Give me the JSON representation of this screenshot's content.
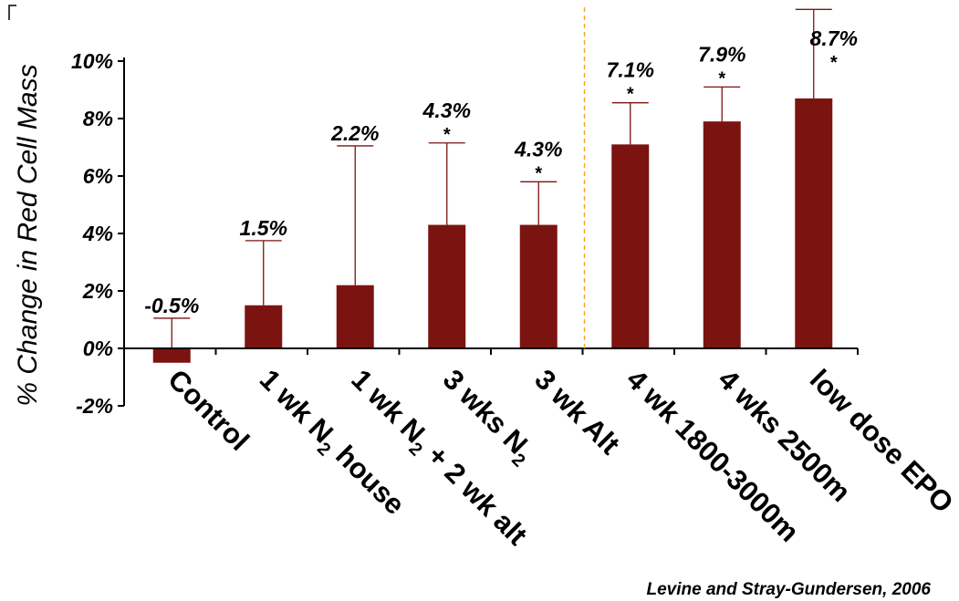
{
  "chart_data": {
    "type": "bar",
    "ylabel": "% Change in Red Cell Mass",
    "ylim": [
      -2,
      10
    ],
    "yticks": [
      "-2%",
      "0%",
      "2%",
      "4%",
      "6%",
      "8%",
      "10%"
    ],
    "ytick_values": [
      -2,
      0,
      2,
      4,
      6,
      8,
      10
    ],
    "bar_color": "#7b1411",
    "divider_color": "#f5a623",
    "categories": [
      {
        "parts": [
          {
            "t": "Control"
          }
        ]
      },
      {
        "parts": [
          {
            "t": "1 wk N"
          },
          {
            "t": "2",
            "sub": true
          },
          {
            "t": " house"
          }
        ]
      },
      {
        "parts": [
          {
            "t": "1 wk N"
          },
          {
            "t": "2",
            "sub": true
          },
          {
            "t": " + 2 wk alt"
          }
        ]
      },
      {
        "parts": [
          {
            "t": "3 wks N"
          },
          {
            "t": "2",
            "sub": true
          }
        ]
      },
      {
        "parts": [
          {
            "t": "3 wk Alt"
          }
        ]
      },
      {
        "parts": [
          {
            "t": "4 wk 1800-3000m"
          }
        ]
      },
      {
        "parts": [
          {
            "t": "4 wks 2500m"
          }
        ]
      },
      {
        "parts": [
          {
            "t": "low dose EPO"
          }
        ]
      }
    ],
    "values": [
      -0.5,
      1.5,
      2.2,
      4.3,
      4.3,
      7.1,
      7.9,
      8.7
    ],
    "error_upper": [
      1.05,
      3.75,
      7.05,
      7.15,
      5.8,
      8.55,
      9.1,
      11.8
    ],
    "value_labels": [
      "-0.5%",
      "1.5%",
      "2.2%",
      "4.3%",
      "4.3%",
      "7.1%",
      "7.9%",
      "8.7%"
    ],
    "significance": [
      "",
      "",
      "",
      "*",
      "*",
      "*",
      "*",
      "*"
    ],
    "divider_after_index": 4
  },
  "source_note": "Levine and Stray-Gundersen, 2006"
}
